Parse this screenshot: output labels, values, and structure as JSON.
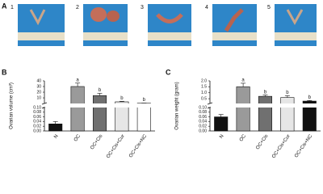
{
  "figure": {
    "panel_labels": [
      "A",
      "B",
      "C"
    ],
    "photo_labels": [
      "1",
      "2",
      "3",
      "4",
      "5"
    ]
  },
  "chart_data": [
    {
      "type": "bar",
      "ylabel": "Ovarian volume (cm³)",
      "categories": [
        "N",
        "OC",
        "OC+Cis",
        "OC+Cis+Cur",
        "OC+Cis+NC"
      ],
      "values": [
        0.03,
        30,
        14,
        3,
        0.5
      ],
      "errors": [
        0.01,
        6,
        4,
        1,
        0.2
      ],
      "annotations": [
        null,
        "a",
        "b",
        "b",
        "b"
      ],
      "colors": [
        "#111111",
        "#9a9a9a",
        "#707070",
        "#e6e6e6",
        "#ffffff"
      ],
      "ylim_lower": [
        0,
        0.1
      ],
      "yticks_lower": [
        {
          "value": 0,
          "label": "0.00"
        },
        {
          "value": 0.02,
          "label": "0.02"
        },
        {
          "value": 0.04,
          "label": "0.04"
        },
        {
          "value": 0.06,
          "label": "0.06"
        },
        {
          "value": 0.08,
          "label": "0.08"
        },
        {
          "value": 0.1,
          "label": "0.10"
        }
      ],
      "ylim_upper": [
        0.1,
        40
      ],
      "yticks_upper": [
        10,
        20,
        30,
        40
      ]
    },
    {
      "type": "bar",
      "ylabel": "Ovarian weight (gram)",
      "categories": [
        "N",
        "OC",
        "OC+Cis",
        "OC+Cis+Cur",
        "OC+Cis+NC"
      ],
      "values": [
        0.06,
        1.5,
        0.7,
        0.6,
        0.3
      ],
      "errors": [
        0.01,
        0.3,
        0.1,
        0.15,
        0.05
      ],
      "annotations": [
        null,
        "a",
        "b",
        "b",
        "b"
      ],
      "colors": [
        "#111111",
        "#9a9a9a",
        "#707070",
        "#e6e6e6",
        "#111111"
      ],
      "ylim_lower": [
        0,
        0.1
      ],
      "yticks_lower": [
        {
          "value": 0,
          "label": "0.00"
        },
        {
          "value": 0.02,
          "label": "0.02"
        },
        {
          "value": 0.04,
          "label": "0.04"
        },
        {
          "value": 0.06,
          "label": "0.06"
        },
        {
          "value": 0.08,
          "label": "0.08"
        },
        {
          "value": 0.1,
          "label": "0.10"
        }
      ],
      "ylim_upper": [
        0.1,
        2
      ],
      "yticks_upper": [
        0.5,
        {
          "value": 1,
          "label": "1.0"
        },
        1.5,
        {
          "value": 2,
          "label": "2.0"
        }
      ]
    }
  ]
}
